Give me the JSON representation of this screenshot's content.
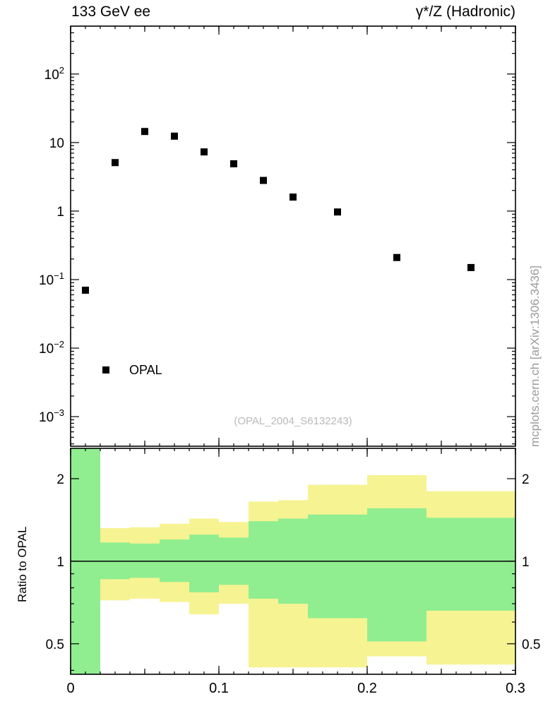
{
  "header": {
    "left_title": "133 GeV ee",
    "right_title": "γ*/Z (Hadronic)"
  },
  "watermark": "mcplots.cern.ch [arXiv:1306.3436]",
  "chart_data": [
    {
      "type": "scatter",
      "panel": "main",
      "yscale": "log",
      "xlim": [
        0,
        0.3
      ],
      "ylim": [
        0.00037,
        500
      ],
      "y_major_exponents": [
        -3,
        -2,
        -1,
        0,
        1,
        2
      ],
      "x_ticks": {
        "minor_step": 0.01,
        "medium_step": 0.05,
        "major_step": 0.1
      },
      "points": {
        "x": [
          0.01,
          0.03,
          0.05,
          0.07,
          0.09,
          0.11,
          0.13,
          0.15,
          0.18,
          0.22,
          0.27
        ],
        "y": [
          0.07,
          5.1,
          14.5,
          12.4,
          7.3,
          4.9,
          2.8,
          1.6,
          0.97,
          0.21,
          0.15
        ]
      },
      "marker": {
        "shape": "square",
        "color": "#000000",
        "size": 10
      },
      "legend": {
        "label": "OPAL",
        "x": 0.024,
        "y": 0.0048
      },
      "analysis_label": "(OPAL_2004_S6132243)"
    },
    {
      "type": "ratio-bands",
      "panel": "ratio",
      "ylabel": "Ratio to OPAL",
      "yscale": "log",
      "xlim": [
        0,
        0.3
      ],
      "ylim": [
        0.387,
        2.58
      ],
      "y_ticks": [
        {
          "value": 0.5,
          "label": "0.5"
        },
        {
          "value": 1,
          "label": "1"
        },
        {
          "value": 2,
          "label": "2"
        }
      ],
      "x_labels": [
        {
          "value": 0,
          "label": "0"
        },
        {
          "value": 0.1,
          "label": "0.1"
        },
        {
          "value": 0.2,
          "label": "0.2"
        },
        {
          "value": 0.3,
          "label": "0.3"
        }
      ],
      "reference_line": 1,
      "colors": {
        "band_outer": "#f6f392",
        "band_inner": "#90ee90"
      },
      "bands": [
        {
          "x0": 0.0,
          "x1": 0.02,
          "outer": [
            0.387,
            2.58
          ],
          "inner": [
            0.387,
            2.58
          ]
        },
        {
          "x0": 0.02,
          "x1": 0.04,
          "outer": [
            0.72,
            1.32
          ],
          "inner": [
            0.86,
            1.17
          ]
        },
        {
          "x0": 0.04,
          "x1": 0.06,
          "outer": [
            0.73,
            1.33
          ],
          "inner": [
            0.87,
            1.16
          ]
        },
        {
          "x0": 0.06,
          "x1": 0.08,
          "outer": [
            0.71,
            1.37
          ],
          "inner": [
            0.84,
            1.2
          ]
        },
        {
          "x0": 0.08,
          "x1": 0.1,
          "outer": [
            0.64,
            1.43
          ],
          "inner": [
            0.77,
            1.25
          ]
        },
        {
          "x0": 0.1,
          "x1": 0.12,
          "outer": [
            0.7,
            1.39
          ],
          "inner": [
            0.82,
            1.22
          ]
        },
        {
          "x0": 0.12,
          "x1": 0.14,
          "outer": [
            0.41,
            1.65
          ],
          "inner": [
            0.73,
            1.4
          ]
        },
        {
          "x0": 0.14,
          "x1": 0.16,
          "outer": [
            0.41,
            1.67
          ],
          "inner": [
            0.7,
            1.43
          ]
        },
        {
          "x0": 0.16,
          "x1": 0.2,
          "outer": [
            0.41,
            1.9
          ],
          "inner": [
            0.62,
            1.48
          ]
        },
        {
          "x0": 0.2,
          "x1": 0.24,
          "outer": [
            0.45,
            2.06
          ],
          "inner": [
            0.51,
            1.56
          ]
        },
        {
          "x0": 0.24,
          "x1": 0.3,
          "outer": [
            0.42,
            1.8
          ],
          "inner": [
            0.66,
            1.44
          ]
        }
      ]
    }
  ]
}
